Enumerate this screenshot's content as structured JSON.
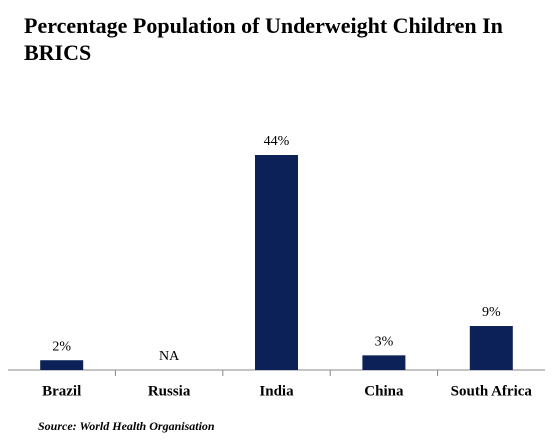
{
  "chart_data": {
    "type": "bar",
    "title": "Percentage Population of Underweight Children In BRICS",
    "categories": [
      "Brazil",
      "Russia",
      "India",
      "China",
      "South Africa"
    ],
    "values": [
      2,
      null,
      44,
      3,
      9
    ],
    "value_labels": [
      "2%",
      "NA",
      "44%",
      "3%",
      "9%"
    ],
    "color": "#0c2158",
    "source": "Source: World Health Organisation"
  }
}
